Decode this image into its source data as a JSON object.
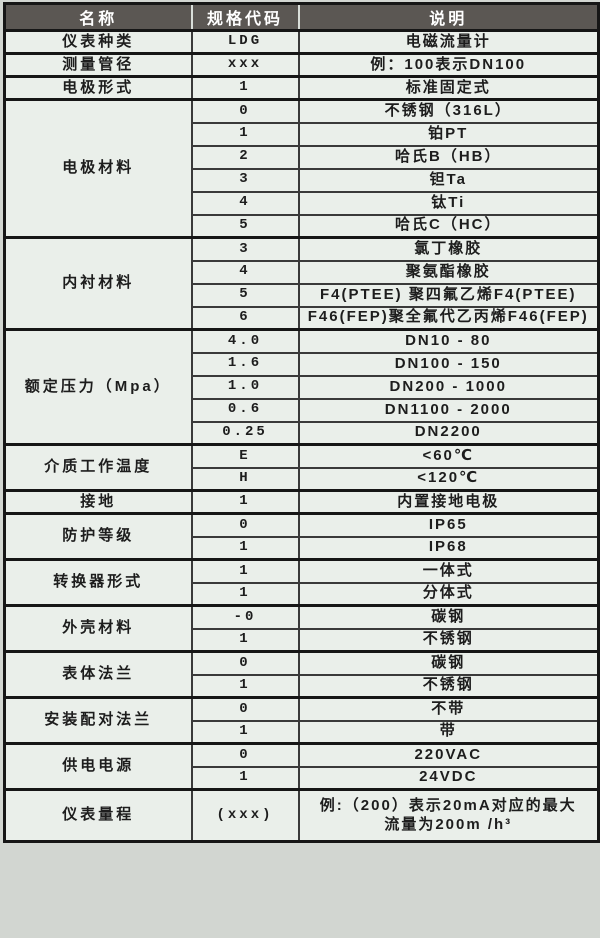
{
  "table": {
    "headers": [
      "名称",
      "规格代码",
      "说明"
    ],
    "groups": [
      {
        "name": "仪表种类",
        "rows": [
          {
            "code": "LDG",
            "desc": "电磁流量计"
          }
        ]
      },
      {
        "name": "测量管径",
        "rows": [
          {
            "code": "xxx",
            "desc": "例：100表示DN100"
          }
        ]
      },
      {
        "name": "电极形式",
        "rows": [
          {
            "code": "1",
            "desc": "标准固定式"
          }
        ]
      },
      {
        "name": "电极材料",
        "rows": [
          {
            "code": "0",
            "desc": "不锈钢（316L）"
          },
          {
            "code": "1",
            "desc": "铂PT"
          },
          {
            "code": "2",
            "desc": "哈氏B（HB）"
          },
          {
            "code": "3",
            "desc": "钽Ta"
          },
          {
            "code": "4",
            "desc": "钛Ti"
          },
          {
            "code": "5",
            "desc": "哈氏C（HC）"
          }
        ]
      },
      {
        "name": "内衬材料",
        "rows": [
          {
            "code": "3",
            "desc": "氯丁橡胶"
          },
          {
            "code": "4",
            "desc": "聚氨酯橡胶"
          },
          {
            "code": "5",
            "desc": "F4(PTEE) 聚四氟乙烯F4(PTEE)"
          },
          {
            "code": "6",
            "desc": "F46(FEP)聚全氟代乙丙烯F46(FEP)"
          }
        ]
      },
      {
        "name": "额定压力（Mpa）",
        "rows": [
          {
            "code": "4.0",
            "desc": "DN10 - 80"
          },
          {
            "code": "1.6",
            "desc": "DN100 - 150"
          },
          {
            "code": "1.0",
            "desc": "DN200 - 1000"
          },
          {
            "code": "0.6",
            "desc": "DN1100 - 2000"
          },
          {
            "code": "0.25",
            "desc": "DN2200"
          }
        ]
      },
      {
        "name": "介质工作温度",
        "rows": [
          {
            "code": "E",
            "desc": "<60℃"
          },
          {
            "code": "H",
            "desc": "<120℃"
          }
        ]
      },
      {
        "name": "接地",
        "rows": [
          {
            "code": "1",
            "desc": "内置接地电极"
          }
        ]
      },
      {
        "name": "防护等级",
        "rows": [
          {
            "code": "0",
            "desc": "IP65"
          },
          {
            "code": "1",
            "desc": "IP68"
          }
        ]
      },
      {
        "name": "转换器形式",
        "rows": [
          {
            "code": "1",
            "desc": "一体式"
          },
          {
            "code": "1",
            "desc": "分体式"
          }
        ]
      },
      {
        "name": "外壳材料",
        "rows": [
          {
            "code": "-0",
            "desc": "碳钢"
          },
          {
            "code": "1",
            "desc": "不锈钢"
          }
        ]
      },
      {
        "name": "表体法兰",
        "rows": [
          {
            "code": "0",
            "desc": "碳钢"
          },
          {
            "code": "1",
            "desc": "不锈钢"
          }
        ]
      },
      {
        "name": "安装配对法兰",
        "rows": [
          {
            "code": "0",
            "desc": "不带"
          },
          {
            "code": "1",
            "desc": "带"
          }
        ]
      },
      {
        "name": "供电电源",
        "rows": [
          {
            "code": "0",
            "desc": "220VAC"
          },
          {
            "code": "1",
            "desc": "24VDC"
          }
        ]
      },
      {
        "name": "仪表量程",
        "rows": [
          {
            "code": "(xxx)",
            "desc_lines": [
              "例:（200）表示20mA对应的最大",
              "流量为200m /h³"
            ],
            "tall": true
          }
        ]
      }
    ],
    "colors": {
      "header_bg": "#5b5753",
      "header_text": "#ffffff",
      "cell_bg": "#eaefea",
      "border": "#161616",
      "text": "#1d1d1d"
    }
  }
}
